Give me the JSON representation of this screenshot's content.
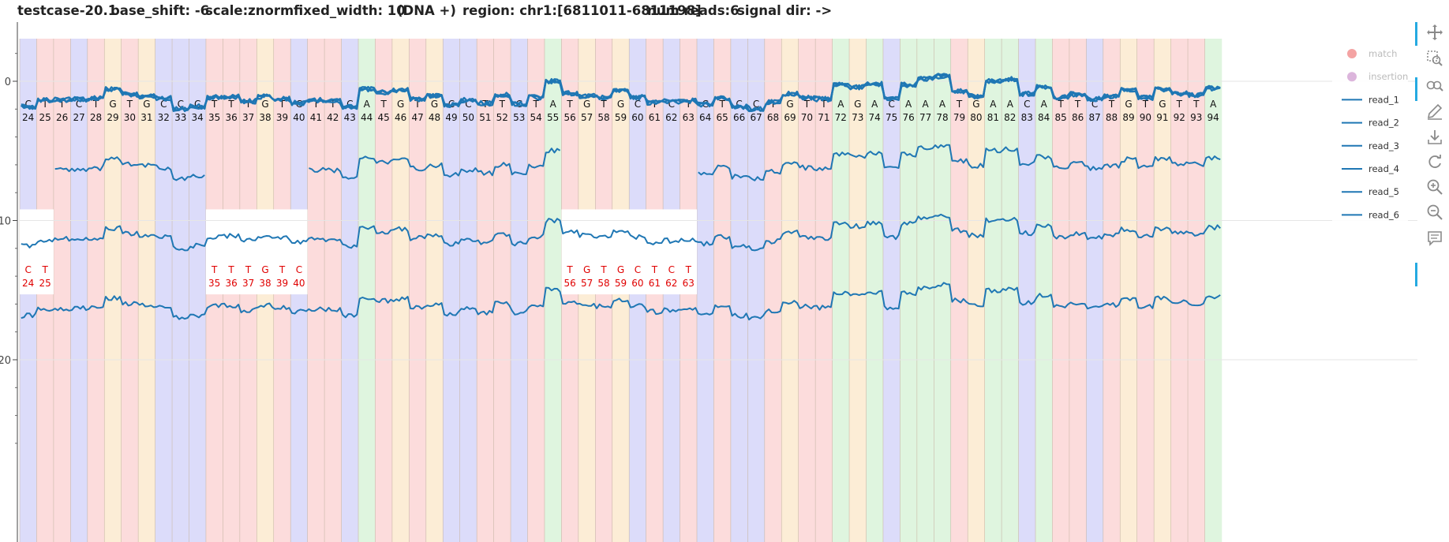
{
  "header": {
    "title": "testcase-20.1",
    "base_shift": "base_shift: -6",
    "scale": "scale:znorm",
    "fixed_width": "fixed_width: 10",
    "strand": "(DNA +)",
    "region": "region: chr1:[6811011-6811198]",
    "num_reads": "num reads:6",
    "signal_dir": "signal dir: ->"
  },
  "toolbar": [
    {
      "name": "pan-tool",
      "icon": "move-icon"
    },
    {
      "name": "box-zoom-tool",
      "icon": "box-zoom-icon"
    },
    {
      "name": "wheel-zoom-tool",
      "icon": "wheel-zoom-icon"
    },
    {
      "name": "edit-tool",
      "icon": "pencil-icon"
    },
    {
      "name": "save-tool",
      "icon": "download-icon"
    },
    {
      "name": "reset-tool",
      "icon": "reset-icon"
    },
    {
      "name": "zoom-in-tool",
      "icon": "zoom-in-icon"
    },
    {
      "name": "zoom-out-tool",
      "icon": "zoom-out-icon"
    },
    {
      "name": "hover-tool",
      "icon": "comment-icon"
    }
  ],
  "base_colors": {
    "A": "#dff5df",
    "C": "#dcdcfa",
    "G": "#fcedd6",
    "T": "#fcdcdc"
  },
  "line_color": "#1f77b4",
  "chart_data": {
    "type": "line",
    "title": "",
    "xlabel": "",
    "ylabel": "",
    "y_tick_labels": [
      "0",
      "10",
      "20"
    ],
    "y_ticks": [
      0,
      10,
      20
    ],
    "ylim": [
      27,
      -4
    ],
    "legend": {
      "placement": "top-right",
      "entries": [
        "match",
        "insertion",
        "read_1",
        "read_2",
        "read_3",
        "read_4",
        "read_5",
        "read_6"
      ]
    },
    "bases": {
      "positions": [
        24,
        25,
        26,
        27,
        28,
        29,
        30,
        31,
        32,
        33,
        34,
        35,
        36,
        37,
        38,
        39,
        40,
        41,
        42,
        43,
        44,
        45,
        46,
        47,
        48,
        49,
        50,
        51,
        52,
        53,
        54,
        55,
        56,
        57,
        58,
        59,
        60,
        61,
        62,
        63,
        64,
        65,
        66,
        67,
        68,
        69,
        70,
        71,
        72,
        73,
        74,
        75,
        76,
        77,
        78,
        79,
        80,
        81,
        82,
        83,
        84,
        85,
        86,
        87,
        88,
        89,
        90,
        91,
        92,
        93,
        94
      ],
      "labels": [
        "C",
        "T",
        "T",
        "C",
        "T",
        "G",
        "T",
        "G",
        "C",
        "C",
        "C",
        "T",
        "T",
        "T",
        "G",
        "T",
        "C",
        "T",
        "T",
        "C",
        "A",
        "T",
        "G",
        "T",
        "G",
        "C",
        "C",
        "T",
        "T",
        "C",
        "T",
        "A",
        "T",
        "G",
        "T",
        "G",
        "C",
        "T",
        "C",
        "T",
        "C",
        "T",
        "C",
        "C",
        "T",
        "G",
        "T",
        "T",
        "A",
        "G",
        "A",
        "C",
        "A",
        "A",
        "A",
        "T",
        "G",
        "A",
        "A",
        "C",
        "A",
        "T",
        "T",
        "C",
        "T",
        "G",
        "T",
        "G",
        "T",
        "T",
        "A"
      ]
    },
    "red_label_groups": [
      {
        "labels": [
          "C",
          "T"
        ],
        "positions": [
          24,
          25
        ]
      },
      {
        "labels": [
          "T",
          "T",
          "T",
          "G",
          "T",
          "C"
        ],
        "positions": [
          35,
          36,
          37,
          38,
          39,
          40
        ]
      },
      {
        "labels": [
          "T",
          "G",
          "T",
          "G",
          "C",
          "T",
          "C",
          "T"
        ],
        "positions": [
          56,
          57,
          58,
          59,
          60,
          61,
          62,
          63
        ]
      }
    ],
    "series": [
      {
        "name": "read_1",
        "offset": 0
      },
      {
        "name": "read_2",
        "offset": 0
      },
      {
        "name": "read_3",
        "offset": 0
      },
      {
        "name": "read_4",
        "offset": 5
      },
      {
        "name": "read_5",
        "offset": 10
      },
      {
        "name": "read_6",
        "offset": 15
      }
    ]
  }
}
